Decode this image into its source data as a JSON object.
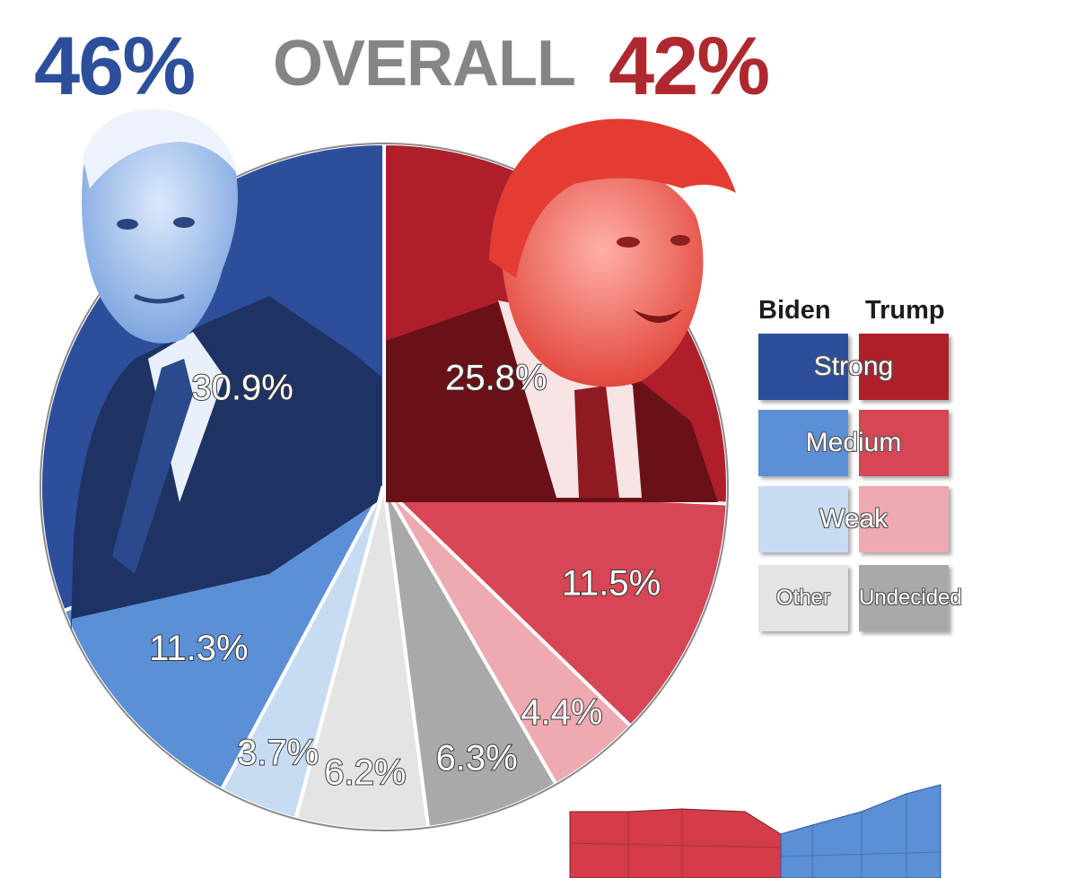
{
  "header": {
    "biden_total": "46%",
    "overall": "OVERALL",
    "trump_total": "42%"
  },
  "legend": {
    "biden_heading": "Biden",
    "trump_heading": "Trump",
    "rows": [
      {
        "label": "Strong",
        "biden_color": "#2d4f9b",
        "trump_color": "#ae1f2a"
      },
      {
        "label": "Medium",
        "biden_color": "#5b8fd6",
        "trump_color": "#d64655"
      },
      {
        "label": "Weak",
        "biden_color": "#c7dcf3",
        "trump_color": "#eea9b1"
      }
    ],
    "other_label": "Other",
    "other_color": "#e4e4e4",
    "undecided_label": "Undecided",
    "undecided_color": "#a9a9a9"
  },
  "photos": {
    "biden": "Joe Biden photo (blue tint)",
    "trump": "Donald Trump photo (red tint)"
  },
  "chart_data": {
    "type": "pie",
    "slices": [
      {
        "candidate": "Trump",
        "strength": "Strong",
        "value": 25.8,
        "label": "25.8%",
        "color": "#ae1f2a"
      },
      {
        "candidate": "Trump",
        "strength": "Medium",
        "value": 11.5,
        "label": "11.5%",
        "color": "#d64655"
      },
      {
        "candidate": "Trump",
        "strength": "Weak",
        "value": 4.4,
        "label": "4.4%",
        "color": "#eea9b1"
      },
      {
        "candidate": "",
        "strength": "Undecided",
        "value": 6.3,
        "label": "6.3%",
        "color": "#a9a9a9"
      },
      {
        "candidate": "",
        "strength": "Other",
        "value": 6.2,
        "label": "6.2%",
        "color": "#e4e4e4"
      },
      {
        "candidate": "Biden",
        "strength": "Weak",
        "value": 3.7,
        "label": "3.7%",
        "color": "#c7dcf3"
      },
      {
        "candidate": "Biden",
        "strength": "Medium",
        "value": 11.3,
        "label": "11.3%",
        "color": "#5b8fd6"
      },
      {
        "candidate": "Biden",
        "strength": "Strong",
        "value": 30.9,
        "label": "30.9%",
        "color": "#2d4f9b"
      }
    ],
    "start": "12 o'clock",
    "direction": "clockwise"
  },
  "map_fragment": {
    "left_color": "#d43c4a",
    "right_color": "#5b8fd6"
  }
}
